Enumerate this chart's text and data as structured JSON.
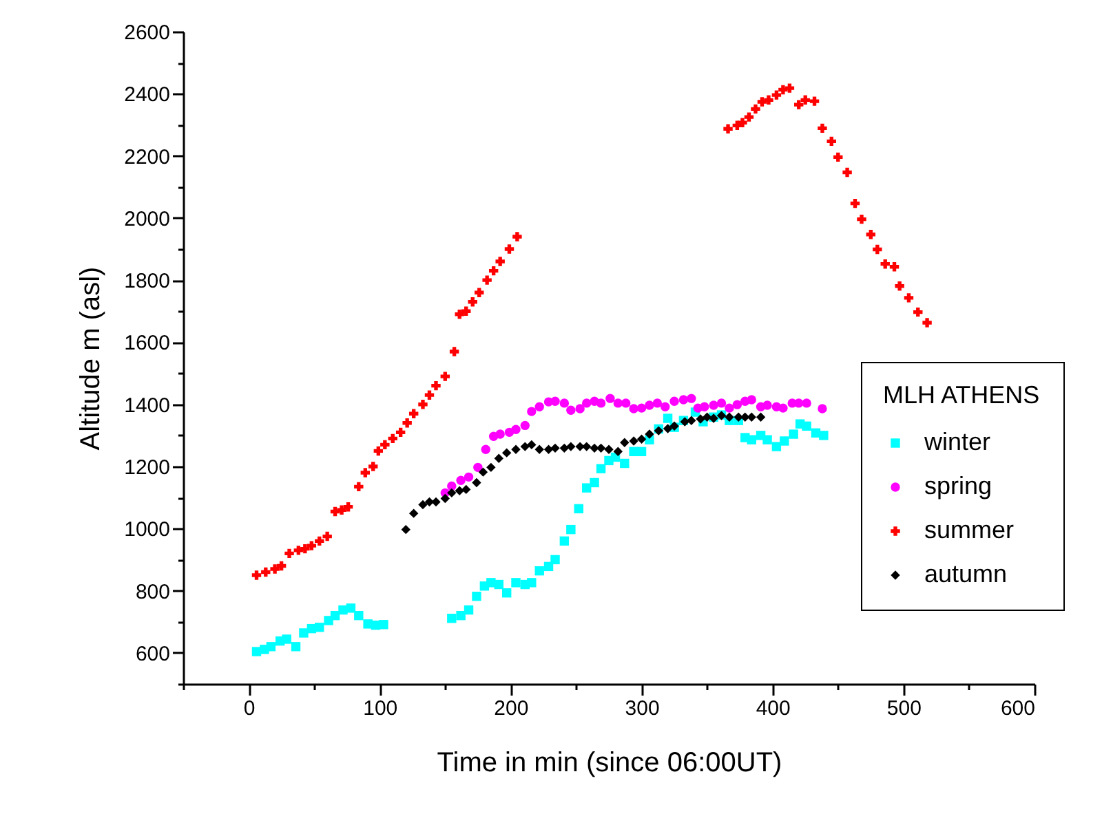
{
  "chart_data": {
    "type": "scatter",
    "xlabel": "Time in min (since 06:00UT)",
    "ylabel": "Altitude m (asl)",
    "legend_title": "MLH ATHENS",
    "legend": "right",
    "grid": false,
    "xlim": [
      -50,
      600
    ],
    "xticks": [
      {
        "value": -50,
        "label": null
      },
      0,
      {
        "value": 50,
        "label": null
      },
      100,
      {
        "value": 150,
        "label": null
      },
      200,
      {
        "value": 250,
        "label": null
      },
      300,
      {
        "value": 350,
        "label": null
      },
      400,
      {
        "value": 450,
        "label": null
      },
      500,
      {
        "value": 550,
        "label": null
      },
      600
    ],
    "ylim": [
      500,
      2600
    ],
    "yticks": [
      {
        "value": 500,
        "label": null
      },
      600,
      {
        "value": 700,
        "label": null
      },
      800,
      {
        "value": 900,
        "label": null
      },
      1000,
      {
        "value": 1100,
        "label": null
      },
      1200,
      {
        "value": 1300,
        "label": null
      },
      1400,
      {
        "value": 1500,
        "label": null
      },
      1600,
      {
        "value": 1700,
        "label": null
      },
      1800,
      {
        "value": 1900,
        "label": null
      },
      2000,
      {
        "value": 2100,
        "label": null
      },
      2200,
      {
        "value": 2300,
        "label": null
      },
      2400,
      {
        "value": 2500,
        "label": null
      },
      2600
    ],
    "series": [
      {
        "name": "winter",
        "color": "#00ffff",
        "marker": "square",
        "x": [
          6,
          12,
          17,
          24,
          29,
          36,
          42,
          48,
          54,
          61,
          66,
          72,
          78,
          84,
          91,
          97,
          103,
          155,
          162,
          168,
          174,
          180,
          185,
          191,
          197,
          204,
          211,
          216,
          222,
          229,
          234,
          241,
          246,
          252,
          258,
          264,
          269,
          275,
          280,
          287,
          294,
          300,
          306,
          313,
          320,
          325,
          332,
          341,
          347,
          355,
          361,
          367,
          374,
          379,
          384,
          391,
          396,
          403,
          409,
          416,
          421,
          426,
          433,
          439
        ],
        "values": [
          604,
          611,
          620,
          638,
          644,
          620,
          664,
          678,
          682,
          704,
          720,
          738,
          744,
          720,
          693,
          689,
          691,
          711,
          720,
          738,
          782,
          815,
          826,
          820,
          793,
          826,
          820,
          826,
          864,
          878,
          900,
          960,
          997,
          1064,
          1131,
          1148,
          1193,
          1219,
          1230,
          1210,
          1248,
          1248,
          1286,
          1321,
          1355,
          1326,
          1348,
          1375,
          1344,
          1359,
          1366,
          1348,
          1348,
          1293,
          1286,
          1300,
          1286,
          1264,
          1282,
          1304,
          1337,
          1330,
          1308,
          1300
        ]
      },
      {
        "name": "spring",
        "color": "#ff00ff",
        "marker": "circle",
        "x": [
          150,
          155,
          162,
          168,
          175,
          181,
          187,
          192,
          199,
          204,
          211,
          216,
          222,
          229,
          234,
          241,
          246,
          253,
          258,
          264,
          269,
          276,
          282,
          288,
          294,
          300,
          306,
          312,
          318,
          325,
          332,
          338,
          343,
          348,
          355,
          361,
          367,
          373,
          379,
          384,
          391,
          396,
          403,
          408,
          415,
          420,
          426,
          438
        ],
        "values": [
          1115,
          1137,
          1155,
          1166,
          1197,
          1255,
          1297,
          1304,
          1310,
          1319,
          1332,
          1377,
          1392,
          1408,
          1410,
          1404,
          1381,
          1386,
          1404,
          1410,
          1404,
          1419,
          1404,
          1404,
          1386,
          1388,
          1397,
          1404,
          1392,
          1410,
          1415,
          1419,
          1388,
          1392,
          1397,
          1404,
          1388,
          1399,
          1410,
          1415,
          1392,
          1397,
          1392,
          1388,
          1404,
          1404,
          1404,
          1386
        ]
      },
      {
        "name": "summer",
        "color": "#ff0000",
        "marker": "cross",
        "x": [
          6,
          13,
          20,
          25,
          31,
          38,
          43,
          48,
          54,
          60,
          66,
          71,
          76,
          84,
          89,
          95,
          99,
          104,
          110,
          116,
          121,
          126,
          133,
          138,
          143,
          150,
          157,
          161,
          166,
          171,
          176,
          182,
          187,
          192,
          199,
          205,
          366,
          373,
          377,
          382,
          387,
          392,
          397,
          403,
          408,
          413,
          420,
          425,
          432,
          438,
          445,
          450,
          457,
          463,
          468,
          475,
          480,
          486,
          493,
          497,
          504,
          511,
          518
        ],
        "values": [
          850,
          860,
          870,
          880,
          920,
          930,
          935,
          945,
          960,
          975,
          1055,
          1060,
          1070,
          1135,
          1180,
          1200,
          1250,
          1270,
          1290,
          1310,
          1340,
          1370,
          1400,
          1430,
          1460,
          1490,
          1570,
          1690,
          1700,
          1730,
          1760,
          1800,
          1830,
          1860,
          1900,
          1940,
          2287,
          2298,
          2307,
          2325,
          2351,
          2374,
          2380,
          2396,
          2413,
          2418,
          2365,
          2380,
          2376,
          2289,
          2247,
          2196,
          2147,
          2047,
          1996,
          1947,
          1899,
          1852,
          1843,
          1781,
          1743,
          1697,
          1663
        ]
      },
      {
        "name": "autumn",
        "color": "#000000",
        "marker": "diamond",
        "x": [
          120,
          126,
          133,
          138,
          143,
          150,
          155,
          161,
          166,
          174,
          179,
          185,
          191,
          197,
          204,
          211,
          216,
          222,
          229,
          234,
          241,
          246,
          253,
          258,
          264,
          269,
          275,
          282,
          287,
          294,
          300,
          306,
          313,
          320,
          325,
          333,
          338,
          345,
          350,
          355,
          361,
          367,
          374,
          379,
          384,
          391
        ],
        "values": [
          997,
          1049,
          1077,
          1086,
          1086,
          1097,
          1115,
          1122,
          1126,
          1148,
          1182,
          1197,
          1226,
          1244,
          1255,
          1264,
          1270,
          1255,
          1255,
          1259,
          1259,
          1264,
          1264,
          1264,
          1259,
          1259,
          1255,
          1248,
          1277,
          1282,
          1288,
          1304,
          1315,
          1322,
          1330,
          1344,
          1348,
          1353,
          1359,
          1355,
          1364,
          1359,
          1359,
          1359,
          1359,
          1359
        ]
      }
    ]
  }
}
